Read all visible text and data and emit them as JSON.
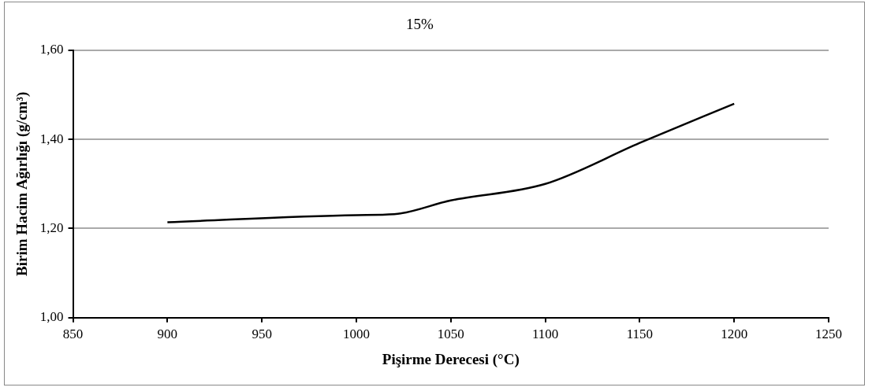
{
  "chart_data": {
    "type": "line",
    "title": "15%",
    "xlabel": "Pişirme Derecesi (°C)",
    "ylabel": "Birim Hacim Ağırlığı (g/cm³)",
    "x": [
      900,
      1000,
      1020,
      1050,
      1100,
      1150,
      1200
    ],
    "series": [
      {
        "color": "#000000",
        "values": [
          1.214,
          1.23,
          1.232,
          1.263,
          1.3,
          1.392,
          1.48
        ]
      }
    ],
    "xlim": [
      850,
      1250
    ],
    "xticks": [
      850,
      900,
      950,
      1000,
      1050,
      1100,
      1150,
      1200,
      1250
    ],
    "ylim": [
      1.0,
      1.6
    ],
    "yticks": [
      {
        "value": 1.0,
        "label": "1,00"
      },
      {
        "value": 1.2,
        "label": "1,20"
      },
      {
        "value": 1.4,
        "label": "1,40"
      },
      {
        "value": 1.6,
        "label": "1,60"
      }
    ],
    "grid": "y",
    "legend": false,
    "marker": "none",
    "line_style": "solid"
  }
}
